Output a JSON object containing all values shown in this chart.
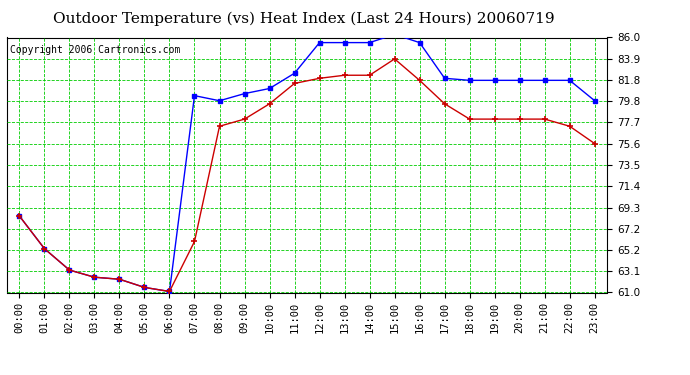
{
  "title": "Outdoor Temperature (vs) Heat Index (Last 24 Hours) 20060719",
  "copyright": "Copyright 2006 Cartronics.com",
  "x_labels": [
    "00:00",
    "01:00",
    "02:00",
    "03:00",
    "04:00",
    "05:00",
    "06:00",
    "07:00",
    "08:00",
    "09:00",
    "10:00",
    "11:00",
    "12:00",
    "13:00",
    "14:00",
    "15:00",
    "16:00",
    "17:00",
    "18:00",
    "19:00",
    "20:00",
    "21:00",
    "22:00",
    "23:00"
  ],
  "temp_blue": [
    68.5,
    65.3,
    63.2,
    62.5,
    62.3,
    61.5,
    61.1,
    80.3,
    79.8,
    80.5,
    81.0,
    82.5,
    85.5,
    85.5,
    85.5,
    86.3,
    85.5,
    82.0,
    81.8,
    81.8,
    81.8,
    81.8,
    81.8,
    79.8
  ],
  "heat_red": [
    68.5,
    65.3,
    63.2,
    62.5,
    62.3,
    61.5,
    61.1,
    66.0,
    77.3,
    78.0,
    79.5,
    81.5,
    82.0,
    82.3,
    82.3,
    83.9,
    81.8,
    79.5,
    78.0,
    78.0,
    78.0,
    78.0,
    77.3,
    75.6
  ],
  "ylim": [
    61.0,
    86.0
  ],
  "yticks": [
    61.0,
    63.1,
    65.2,
    67.2,
    69.3,
    71.4,
    73.5,
    75.6,
    77.7,
    79.8,
    81.8,
    83.9,
    86.0
  ],
  "blue_color": "#0000ff",
  "red_color": "#cc0000",
  "grid_color": "#00cc00",
  "bg_color": "#ffffff",
  "title_fontsize": 11,
  "copyright_fontsize": 7,
  "tick_fontsize": 7.5
}
